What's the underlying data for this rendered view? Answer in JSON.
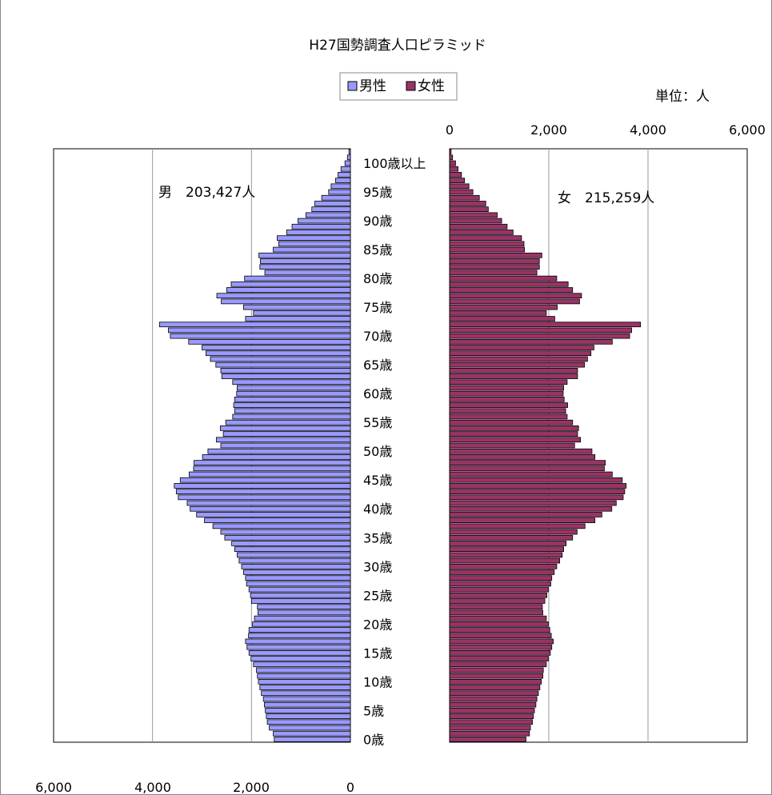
{
  "chart_data": {
    "type": "bar",
    "title": "H27国勢調査人口ピラミッド",
    "unit_label": "単位：人",
    "legend": {
      "items": [
        {
          "label": "男性",
          "color": "#9999ff"
        },
        {
          "label": "女性",
          "color": "#993366"
        }
      ]
    },
    "male_total_label": "男　203,427人",
    "female_total_label": "女　215,259人",
    "x_ticks_male": [
      "6,000",
      "4,000",
      "2,000",
      "0"
    ],
    "x_ticks_female": [
      "0",
      "2,000",
      "4,000",
      "6,000"
    ],
    "xlim": [
      0,
      6000
    ],
    "age_labels": [
      {
        "age": 0,
        "label": "0歳"
      },
      {
        "age": 5,
        "label": "5歳"
      },
      {
        "age": 10,
        "label": "10歳"
      },
      {
        "age": 15,
        "label": "15歳"
      },
      {
        "age": 20,
        "label": "20歳"
      },
      {
        "age": 25,
        "label": "25歳"
      },
      {
        "age": 30,
        "label": "30歳"
      },
      {
        "age": 35,
        "label": "35歳"
      },
      {
        "age": 40,
        "label": "40歳"
      },
      {
        "age": 45,
        "label": "45歳"
      },
      {
        "age": 50,
        "label": "50歳"
      },
      {
        "age": 55,
        "label": "55歳"
      },
      {
        "age": 60,
        "label": "60歳"
      },
      {
        "age": 65,
        "label": "65歳"
      },
      {
        "age": 70,
        "label": "70歳"
      },
      {
        "age": 75,
        "label": "75歳"
      },
      {
        "age": 80,
        "label": "80歳"
      },
      {
        "age": 85,
        "label": "85歳"
      },
      {
        "age": 90,
        "label": "90歳"
      },
      {
        "age": 95,
        "label": "95歳"
      },
      {
        "age": 100,
        "label": "100歳以上"
      }
    ],
    "series": [
      {
        "name": "男性",
        "color": "#9999ff",
        "values": [
          1540,
          1560,
          1640,
          1680,
          1700,
          1720,
          1740,
          1760,
          1800,
          1830,
          1860,
          1880,
          1900,
          1960,
          2010,
          2050,
          2090,
          2120,
          2060,
          2050,
          1980,
          1940,
          1870,
          1880,
          2000,
          2020,
          2050,
          2100,
          2120,
          2160,
          2200,
          2250,
          2290,
          2340,
          2400,
          2540,
          2620,
          2780,
          2950,
          3110,
          3240,
          3300,
          3480,
          3520,
          3560,
          3440,
          3260,
          3170,
          3160,
          2990,
          2880,
          2620,
          2710,
          2570,
          2630,
          2520,
          2380,
          2340,
          2360,
          2340,
          2300,
          2290,
          2380,
          2600,
          2620,
          2720,
          2830,
          2920,
          3000,
          3270,
          3640,
          3680,
          3860,
          2120,
          1960,
          2160,
          2610,
          2700,
          2500,
          2410,
          2140,
          1730,
          1830,
          1820,
          1850,
          1560,
          1450,
          1480,
          1290,
          1180,
          1060,
          900,
          780,
          720,
          580,
          440,
          390,
          300,
          250,
          190,
          110,
          60,
          30
        ]
      },
      {
        "name": "女性",
        "color": "#993366",
        "values": [
          1540,
          1610,
          1630,
          1670,
          1690,
          1710,
          1740,
          1760,
          1790,
          1820,
          1850,
          1880,
          1890,
          1950,
          1990,
          2030,
          2060,
          2090,
          2050,
          2020,
          1990,
          1950,
          1880,
          1870,
          1920,
          1960,
          1990,
          2040,
          2060,
          2110,
          2160,
          2220,
          2270,
          2300,
          2350,
          2480,
          2570,
          2730,
          2930,
          3070,
          3270,
          3360,
          3500,
          3530,
          3560,
          3480,
          3280,
          3120,
          3140,
          2930,
          2870,
          2520,
          2640,
          2580,
          2600,
          2480,
          2370,
          2340,
          2380,
          2310,
          2290,
          2300,
          2370,
          2580,
          2580,
          2720,
          2780,
          2850,
          2910,
          3280,
          3630,
          3670,
          3850,
          2120,
          1950,
          2170,
          2620,
          2660,
          2480,
          2390,
          2160,
          1760,
          1810,
          1810,
          1860,
          1510,
          1500,
          1450,
          1280,
          1160,
          1050,
          960,
          780,
          730,
          600,
          470,
          390,
          300,
          240,
          170,
          120,
          60,
          30
        ]
      }
    ]
  }
}
